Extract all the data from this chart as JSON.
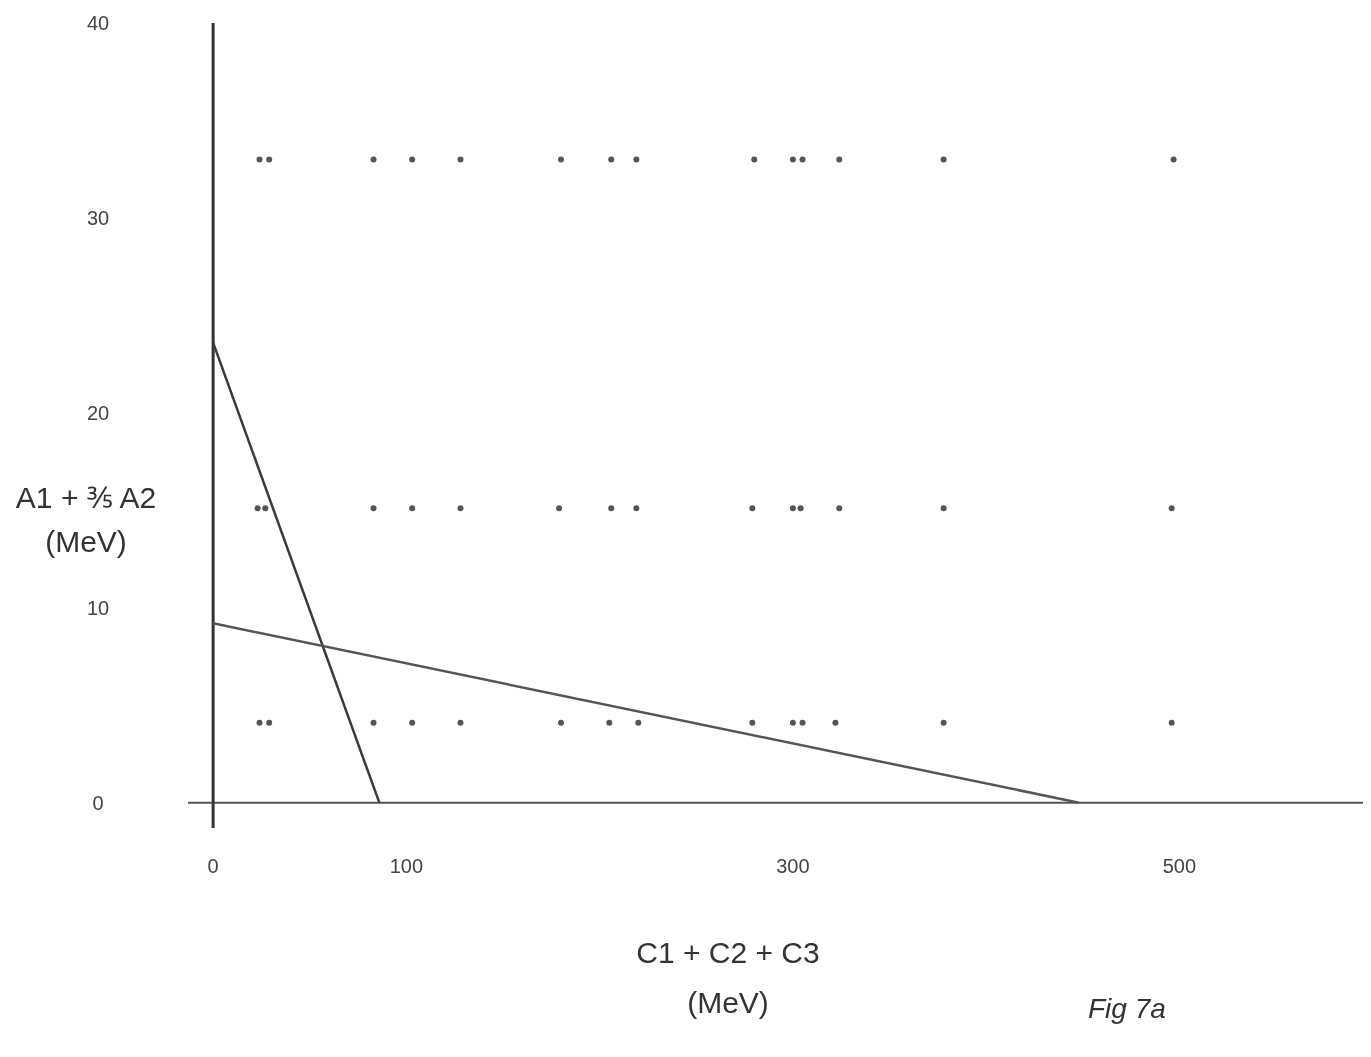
{
  "chart_data": {
    "type": "scatter",
    "xlabel": "C1 + C2 + C3\n(MeV)",
    "ylabel": "A1 + ⅗ A2\n(MeV)",
    "annotations": [
      "Fig 7a"
    ],
    "xlim": [
      -13,
      595
    ],
    "ylim": [
      -1.3,
      40
    ],
    "xticks": [
      0,
      100,
      300,
      500
    ],
    "yticks": [
      0,
      10,
      20,
      30,
      40
    ],
    "series": [
      {
        "marker": "circle",
        "color": "#555555",
        "x": [
          24,
          29,
          83,
          103,
          128,
          180,
          206,
          219,
          280,
          300,
          305,
          324,
          378,
          497,
          23,
          27,
          83,
          103,
          128,
          179,
          206,
          219,
          279,
          300,
          304,
          324,
          378,
          496,
          24,
          29,
          83,
          103,
          128,
          180,
          205,
          220,
          279,
          300,
          305,
          322,
          378,
          496
        ],
        "values": [
          33,
          33,
          33,
          33,
          33,
          33,
          33,
          33,
          33,
          33,
          33,
          33,
          33,
          33,
          15.1,
          15.1,
          15.1,
          15.1,
          15.1,
          15.1,
          15.1,
          15.1,
          15.1,
          15.1,
          15.1,
          15.1,
          15.1,
          15.1,
          4.1,
          4.1,
          4.1,
          4.1,
          4.1,
          4.1,
          4.1,
          4.1,
          4.1,
          4.1,
          4.1,
          4.1,
          4.1,
          4.1
        ]
      },
      {
        "type": "line",
        "color": "#3a3a3a",
        "x": [
          0,
          86
        ],
        "values": [
          23.6,
          0
        ]
      },
      {
        "type": "line",
        "color": "#555555",
        "x": [
          0,
          448
        ],
        "values": [
          9.2,
          0
        ]
      }
    ]
  }
}
